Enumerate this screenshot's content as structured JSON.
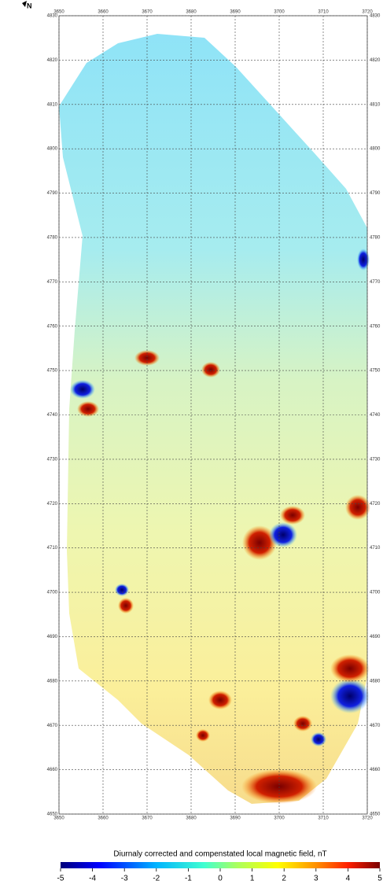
{
  "map": {
    "north_label": "N",
    "x_ticks": [
      3650,
      3660,
      3670,
      3680,
      3690,
      3700,
      3710,
      3720
    ],
    "y_ticks": [
      4830,
      4820,
      4810,
      4800,
      4790,
      4780,
      4770,
      4760,
      4750,
      4740,
      4730,
      4720,
      4710,
      4700,
      4690,
      4680,
      4670,
      4660,
      4650
    ],
    "colorbar": {
      "title": "Diurnaly corrected and compenstated local magnetic field, nT",
      "ticks": [
        -5,
        -4,
        -3,
        -2,
        -1,
        0,
        1,
        2,
        3,
        4,
        5
      ]
    }
  }
}
